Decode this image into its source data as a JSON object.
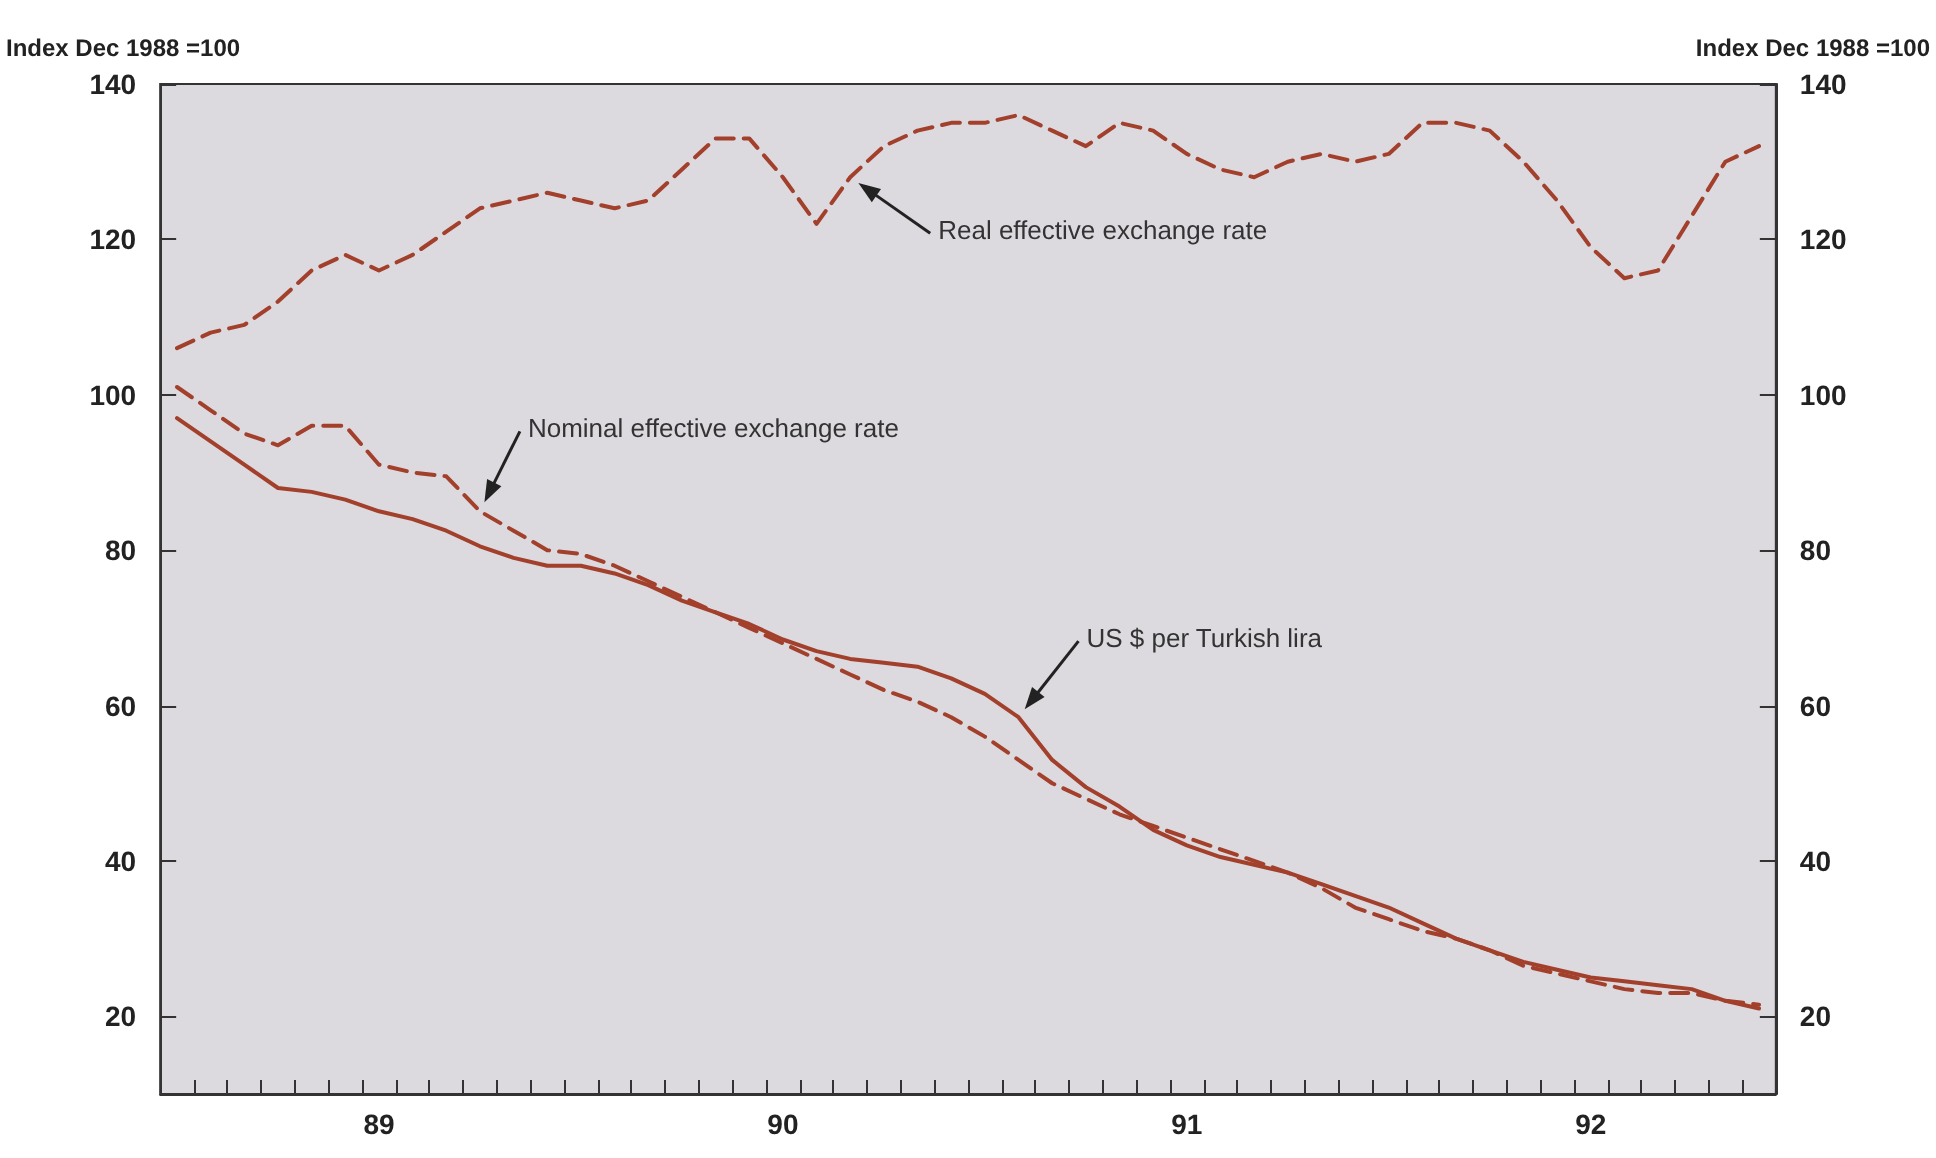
{
  "chart_data": {
    "type": "line",
    "ylabel": "Index Dec 1988 =100",
    "y2label": "Index Dec 1988 =100",
    "categories": [
      null,
      null,
      null,
      null,
      null,
      null,
      "89",
      null,
      null,
      null,
      null,
      null,
      null,
      null,
      null,
      null,
      null,
      null,
      "90",
      null,
      null,
      null,
      null,
      null,
      null,
      null,
      null,
      null,
      null,
      null,
      "91",
      null,
      null,
      null,
      null,
      null,
      null,
      null,
      null,
      null,
      null,
      null,
      "92",
      null,
      null,
      null,
      null,
      null
    ],
    "series": [
      {
        "color": "#a3402c",
        "line_style": "dashed",
        "values": [
          106,
          108,
          109,
          112,
          116,
          118,
          116,
          118,
          121,
          124,
          125,
          126,
          125,
          124,
          125,
          129,
          133,
          133,
          128,
          122,
          128,
          132,
          134,
          135,
          135,
          136,
          134,
          132,
          135,
          134,
          131,
          129,
          128,
          130,
          131,
          130,
          131,
          135,
          135,
          134,
          130,
          125,
          119,
          115,
          116,
          123,
          130,
          132
        ]
      },
      {
        "color": "#a3402c",
        "line_style": "dashed",
        "values": [
          101,
          98,
          95,
          93.5,
          96,
          96,
          91,
          90,
          89.5,
          85,
          82.5,
          80,
          79.5,
          78,
          76,
          74,
          72,
          70,
          68,
          66,
          64,
          62,
          60.5,
          58.5,
          56,
          53,
          50,
          48,
          46,
          44.5,
          43,
          41.5,
          40,
          38.5,
          36.5,
          34,
          32.5,
          31,
          30,
          28.5,
          26.5,
          25.5,
          24.5,
          23.5,
          23,
          23,
          22,
          21.5
        ]
      },
      {
        "color": "#a3402c",
        "line_style": "solid",
        "values": [
          97,
          94,
          91,
          88,
          87.5,
          86.5,
          85,
          84,
          82.5,
          80.5,
          79,
          78,
          78,
          77,
          75.5,
          73.5,
          72,
          70.5,
          68.5,
          67,
          66,
          65.5,
          65,
          63.5,
          61.5,
          58.5,
          53,
          49.5,
          47,
          44,
          42,
          40.5,
          39.5,
          38.5,
          37,
          35.5,
          34,
          32,
          30,
          28.5,
          27,
          26,
          25,
          24.5,
          24,
          23.5,
          22,
          21
        ]
      }
    ],
    "annotations": [
      "Real effective exchange rate",
      "Nominal effective exchange rate",
      "US $ per Turkish lira"
    ],
    "ylim": [
      10,
      140
    ],
    "yticks": [
      20,
      40,
      60,
      80,
      100,
      120,
      140
    ],
    "y2lim": [
      10,
      140
    ],
    "y2ticks": [
      20,
      40,
      60,
      80,
      100,
      120,
      140
    ],
    "marker": "none",
    "grid": false
  }
}
